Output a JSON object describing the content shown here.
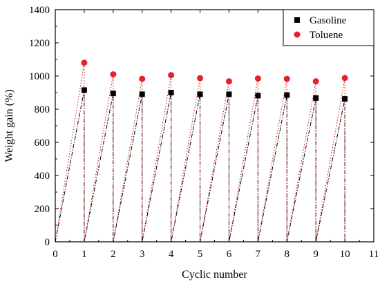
{
  "chart_data": {
    "type": "scatter",
    "xlabel": "Cyclic number",
    "ylabel": "Weight gain (%)",
    "xlim": [
      0,
      11
    ],
    "ylim": [
      0,
      1400
    ],
    "xticks": [
      0,
      1,
      2,
      3,
      4,
      5,
      6,
      7,
      8,
      9,
      10,
      11
    ],
    "yticks": [
      0,
      200,
      400,
      600,
      800,
      1000,
      1200,
      1400
    ],
    "grid": false,
    "legend_position": "top-right",
    "series": [
      {
        "name": "Gasoline",
        "marker": "square",
        "color": "#000000",
        "line_color": "#000000",
        "line_style": "dash-dot",
        "x": [
          1,
          2,
          3,
          4,
          5,
          6,
          7,
          8,
          9,
          10
        ],
        "values": [
          915,
          895,
          890,
          900,
          890,
          890,
          882,
          885,
          867,
          862
        ]
      },
      {
        "name": "Toluene",
        "marker": "circle",
        "color": "#e8202a",
        "line_color": "#cc0000",
        "line_style": "dotted",
        "x": [
          1,
          2,
          3,
          4,
          5,
          6,
          7,
          8,
          9,
          10
        ],
        "values": [
          1080,
          1010,
          983,
          1005,
          987,
          968,
          985,
          983,
          968,
          988
        ]
      }
    ]
  }
}
